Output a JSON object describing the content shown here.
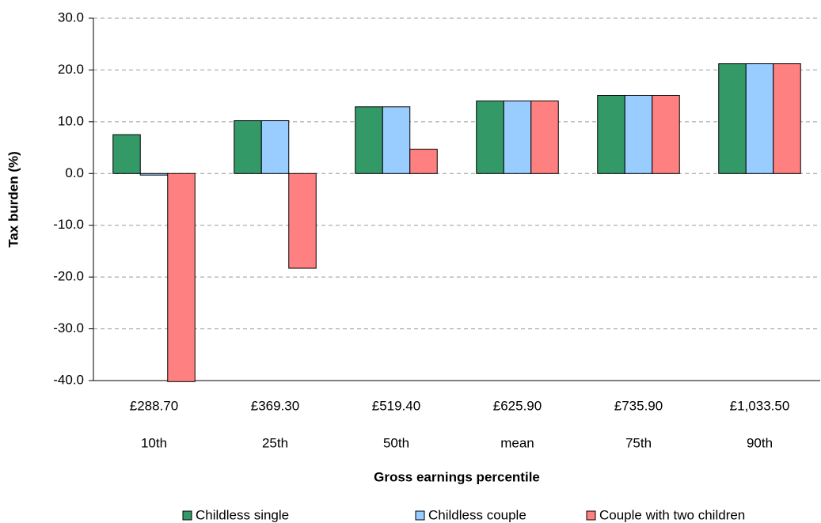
{
  "chart_data": {
    "type": "bar",
    "x_label": "Gross earnings percentile",
    "y_label": "Tax burden (%)",
    "categories": [
      [
        "£288.70",
        "10th"
      ],
      [
        "£369.30",
        "25th"
      ],
      [
        "£519.40",
        "50th"
      ],
      [
        "£625.90",
        "mean"
      ],
      [
        "£735.90",
        "75th"
      ],
      [
        "£1,033.50",
        "90th"
      ]
    ],
    "series": [
      {
        "name": "Childless single",
        "color": "#339966",
        "values": [
          7.5,
          10.2,
          12.9,
          14.0,
          15.1,
          21.2
        ]
      },
      {
        "name": "Childless couple",
        "color": "#99ccff",
        "values": [
          -0.3,
          10.2,
          12.9,
          14.0,
          15.1,
          21.2
        ]
      },
      {
        "name": "Couple with two children",
        "color": "#ff8080",
        "values": [
          -40.2,
          -18.3,
          4.7,
          14.0,
          15.1,
          21.2
        ]
      }
    ],
    "ylim": [
      -40,
      30
    ],
    "yticks": [
      {
        "value": -40,
        "label": "-40.0"
      },
      {
        "value": -30,
        "label": "-30.0"
      },
      {
        "value": -20,
        "label": "-20.0"
      },
      {
        "value": -10,
        "label": "-10.0"
      },
      {
        "value": 0,
        "label": "0.0"
      },
      {
        "value": 10,
        "label": "10.0"
      },
      {
        "value": 20,
        "label": "20.0"
      },
      {
        "value": 30,
        "label": "30.0"
      }
    ],
    "grid": true,
    "legend": "bottom"
  }
}
